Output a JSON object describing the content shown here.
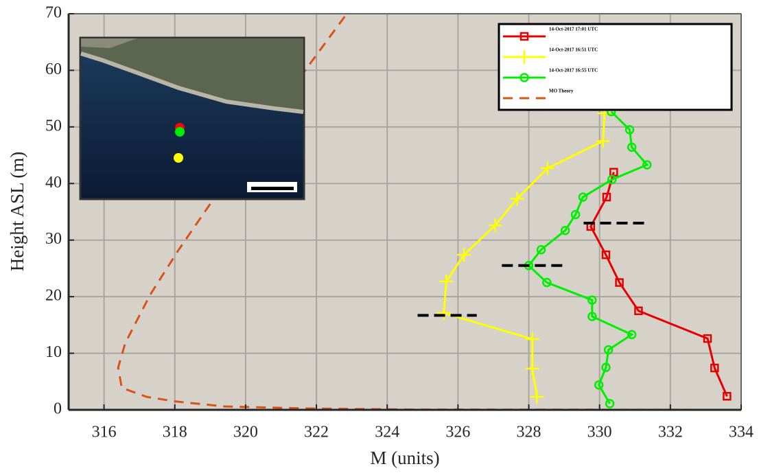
{
  "chart_data": {
    "type": "line",
    "x_label": "M (units)",
    "y_label": "Height ASL (m)",
    "xlim": [
      315,
      334
    ],
    "ylim": [
      0,
      70
    ],
    "xticks": [
      316,
      318,
      320,
      322,
      324,
      326,
      328,
      330,
      332,
      334
    ],
    "yticks": [
      0,
      10,
      20,
      30,
      40,
      50,
      60,
      70
    ],
    "grid": true,
    "legend": "upper right",
    "series": [
      {
        "name": "14-Oct-2017 17:01 UTC",
        "color": "#e60000",
        "marker": "square",
        "x": [
          333.6,
          333.25,
          333.05,
          331.1,
          330.56,
          330.18,
          329.75,
          330.2,
          330.4
        ],
        "values": [
          2.4,
          7.4,
          12.6,
          17.5,
          22.5,
          27.4,
          32.4,
          37.6,
          42.0
        ]
      },
      {
        "name": "14-Oct-2017 16:51 UTC",
        "color": "#ffff00",
        "marker": "plus",
        "x": [
          328.23,
          328.1,
          328.1,
          325.6,
          325.67,
          326.17,
          327.05,
          327.67,
          328.53,
          330.1,
          330.14
        ],
        "values": [
          2.3,
          7.3,
          12.5,
          17.1,
          22.7,
          27.4,
          32.6,
          37.3,
          42.7,
          47.5,
          52.4
        ]
      },
      {
        "name": "14-Oct-2017 16:55 UTC",
        "color": "#00ee00",
        "marker": "circle",
        "x": [
          330.29,
          329.98,
          330.18,
          330.25,
          330.91,
          329.79,
          329.79,
          328.51,
          328.0,
          328.35,
          329.03,
          329.32,
          329.53,
          330.35,
          331.34,
          330.91,
          330.85,
          330.33
        ],
        "values": [
          1.1,
          4.4,
          7.5,
          10.6,
          13.3,
          16.5,
          19.4,
          22.5,
          25.5,
          28.3,
          31.7,
          34.5,
          37.6,
          40.7,
          43.3,
          46.4,
          49.5,
          52.7
        ]
      },
      {
        "name": "MO Theory",
        "color": "#d95319",
        "dash": true,
        "x": [
          322.8,
          321.8,
          319.1,
          318.1,
          317.3,
          316.6,
          316.4,
          316.5,
          317.2,
          318.0,
          319.4,
          321.7,
          324.7,
          334.0
        ],
        "values": [
          69.5,
          61,
          37.3,
          28.2,
          20.3,
          11.8,
          7.5,
          3.9,
          2.3,
          1.5,
          0.6,
          0.25,
          0.05,
          0
        ]
      }
    ],
    "markers": [
      {
        "color": "#000000",
        "x": [
          324.86,
          326.53
        ],
        "values": [
          16.7,
          16.7
        ]
      },
      {
        "color": "#000000",
        "x": [
          327.24,
          328.99
        ],
        "values": [
          25.5,
          25.5
        ]
      },
      {
        "color": "#000000",
        "x": [
          329.55,
          331.3
        ],
        "values": [
          33.0,
          33.0
        ]
      }
    ]
  }
}
